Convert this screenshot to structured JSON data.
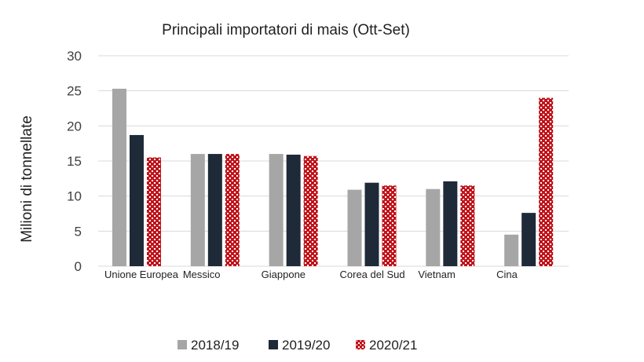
{
  "chart_data": {
    "type": "bar",
    "title": "Principali importatori di mais (Ott-Set)",
    "ylabel": "Milioni di tonnellate",
    "xlabel": "",
    "ylim": [
      0,
      30
    ],
    "yticks": [
      0,
      5,
      10,
      15,
      20,
      25,
      30
    ],
    "grid": true,
    "legend_position": "bottom",
    "categories": [
      "Unione Europea",
      "Messico",
      "Giappone",
      "Corea del Sud",
      "Vietnam",
      "Cina"
    ],
    "series": [
      {
        "name": "2018/19",
        "color": "#a6a6a6",
        "pattern": "solid",
        "values": [
          25.3,
          16.0,
          16.0,
          10.9,
          11.0,
          4.5
        ]
      },
      {
        "name": "2019/20",
        "color": "#1f2a38",
        "pattern": "solid",
        "values": [
          18.7,
          16.0,
          15.9,
          11.9,
          12.1,
          7.6
        ]
      },
      {
        "name": "2020/21",
        "color": "#c0141b",
        "pattern": "lattice",
        "values": [
          15.5,
          16.0,
          15.7,
          11.5,
          11.5,
          24.0
        ]
      }
    ]
  }
}
